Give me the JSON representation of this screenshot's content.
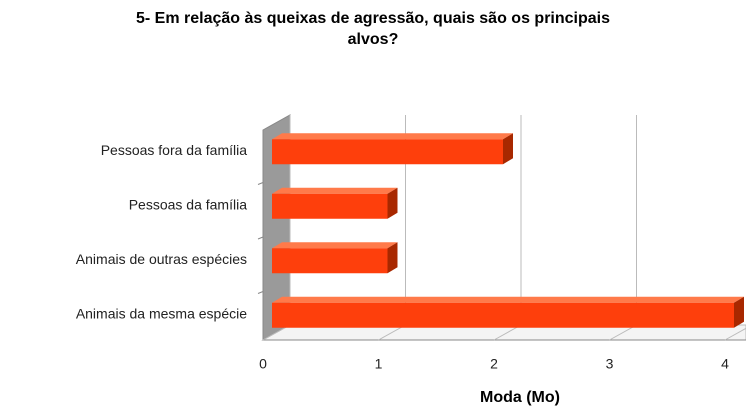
{
  "chart_data": {
    "type": "bar3d",
    "title": "5- Em relação às queixas de agressão, quais são os principais  alvos?",
    "categories": [
      "Pessoas fora da família",
      "Pessoas da família",
      "Animais de outras espécies",
      "Animais da mesma espécie"
    ],
    "values": [
      2,
      1,
      1,
      4
    ],
    "color": "#fe3f0c",
    "xlabel": "Moda (Mo)",
    "xlim": [
      0,
      4
    ],
    "xticks": [
      0,
      1,
      2,
      3,
      4
    ],
    "grid": true
  }
}
